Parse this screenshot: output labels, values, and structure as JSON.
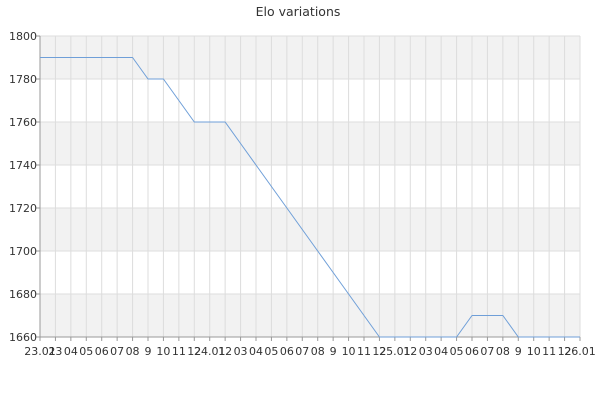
{
  "chart_data": {
    "type": "line",
    "title": "Elo variations",
    "xlabel": "",
    "ylabel": "",
    "ylim": [
      1660,
      1800
    ],
    "yticks": [
      1660,
      1680,
      1700,
      1720,
      1740,
      1760,
      1780,
      1800
    ],
    "x_tick_labels": [
      "23.01",
      "23",
      "04",
      "05",
      "06",
      "07",
      "08",
      "9",
      "10",
      "11",
      "12",
      "24.01",
      "12",
      "03",
      "04",
      "05",
      "06",
      "07",
      "08",
      "9",
      "10",
      "11",
      "12",
      "25.01",
      "12",
      "03",
      "04",
      "05",
      "06",
      "07",
      "08",
      "9",
      "10",
      "11",
      "12",
      "26.01"
    ],
    "series": [
      {
        "color": "#6f9fd8",
        "values": [
          1790,
          1790,
          1790,
          1790,
          1790,
          1790,
          1790,
          1780,
          1780,
          1770,
          1760,
          1760,
          1760,
          1750,
          1740,
          1730,
          1720,
          1710,
          1700,
          1690,
          1680,
          1670,
          1660,
          1660,
          1660,
          1660,
          1660,
          1660,
          1670,
          1670,
          1670,
          1660,
          1660,
          1660,
          1660,
          1660
        ]
      }
    ],
    "grid": true,
    "band_color": "#f2f2f2",
    "grid_color": "#dddddd"
  }
}
